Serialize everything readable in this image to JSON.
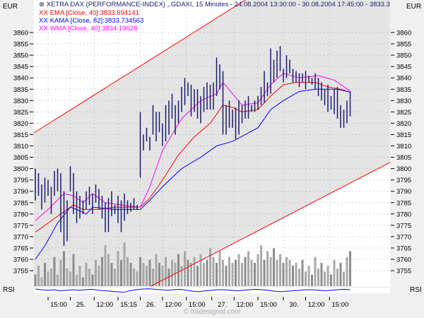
{
  "chart_data": {
    "type": "ohlc",
    "title": "XETRA DAX (PERFORMANCE-INDEX) ,.GDAXI, 15 Minutes - 24.08.2004 13:30:00 - 30.08.2004 17:45:00 - 3833.3",
    "ylabel_left": "EUR",
    "ylabel_right": "EUR",
    "rsi_label": "RSI",
    "ylim": [
      3750,
      3865
    ],
    "yticks": [
      3860,
      3855,
      3850,
      3845,
      3840,
      3835,
      3830,
      3825,
      3820,
      3815,
      3810,
      3805,
      3800,
      3795,
      3790,
      3785,
      3780,
      3775,
      3770,
      3765,
      3760,
      3755
    ],
    "xticks": [
      {
        "bar": 4,
        "label": "15:00"
      },
      {
        "bar": 11,
        "label": "25."
      },
      {
        "bar": 18.5,
        "label": "12:00"
      },
      {
        "bar": 26,
        "label": "15:15"
      },
      {
        "bar": 33,
        "label": "26."
      },
      {
        "bar": 40,
        "label": "12:00"
      },
      {
        "bar": 47.5,
        "label": "15:00"
      },
      {
        "bar": 55.5,
        "label": "27."
      },
      {
        "bar": 62.5,
        "label": "12:00"
      },
      {
        "bar": 70,
        "label": "15:00"
      },
      {
        "bar": 78,
        "label": "30."
      },
      {
        "bar": 85,
        "label": "12:00"
      },
      {
        "bar": 92.5,
        "label": "15:00"
      }
    ],
    "grid": true,
    "bars_high_low": [
      [
        3800,
        3786
      ],
      [
        3798,
        3788
      ],
      [
        3793,
        3782
      ],
      [
        3796,
        3785
      ],
      [
        3795,
        3788
      ],
      [
        3792,
        3780
      ],
      [
        3799,
        3788
      ],
      [
        3800,
        3790
      ],
      [
        3798,
        3772
      ],
      [
        3790,
        3766
      ],
      [
        3786,
        3768
      ],
      [
        3801,
        3790
      ],
      [
        3798,
        3780
      ],
      [
        3790,
        3776
      ],
      [
        3788,
        3778
      ],
      [
        3786,
        3780
      ],
      [
        3790,
        3782
      ],
      [
        3792,
        3784
      ],
      [
        3789,
        3780
      ],
      [
        3793,
        3785
      ],
      [
        3791,
        3782
      ],
      [
        3788,
        3778
      ],
      [
        3785,
        3772
      ],
      [
        3787,
        3772
      ],
      [
        3790,
        3779
      ],
      [
        3784,
        3780
      ],
      [
        3788,
        3776
      ],
      [
        3786,
        3772
      ],
      [
        3789,
        3777
      ],
      [
        3786,
        3780
      ],
      [
        3785,
        3781
      ],
      [
        3787,
        3782
      ],
      [
        3784,
        3782
      ],
      [
        3825,
        3796
      ],
      [
        3815,
        3808
      ],
      [
        3818,
        3812
      ],
      [
        3814,
        3808
      ],
      [
        3828,
        3815
      ],
      [
        3825,
        3812
      ],
      [
        3825,
        3816
      ],
      [
        3820,
        3810
      ],
      [
        3828,
        3812
      ],
      [
        3830,
        3815
      ],
      [
        3833,
        3822
      ],
      [
        3828,
        3815
      ],
      [
        3830,
        3820
      ],
      [
        3836,
        3825
      ],
      [
        3840,
        3828
      ],
      [
        3838,
        3832
      ],
      [
        3837,
        3823
      ],
      [
        3835,
        3825
      ],
      [
        3835,
        3822
      ],
      [
        3832,
        3820
      ],
      [
        3836,
        3825
      ],
      [
        3838,
        3826
      ],
      [
        3837,
        3826
      ],
      [
        3838,
        3826
      ],
      [
        3849,
        3832
      ],
      [
        3846,
        3835
      ],
      [
        3843,
        3815
      ],
      [
        3828,
        3815
      ],
      [
        3830,
        3818
      ],
      [
        3826,
        3818
      ],
      [
        3827,
        3813
      ],
      [
        3830,
        3815
      ],
      [
        3828,
        3820
      ],
      [
        3830,
        3822
      ],
      [
        3832,
        3822
      ],
      [
        3828,
        3825
      ],
      [
        3830,
        3825
      ],
      [
        3832,
        3826
      ],
      [
        3836,
        3828
      ],
      [
        3843,
        3829
      ],
      [
        3838,
        3832
      ],
      [
        3853,
        3833
      ],
      [
        3848,
        3838
      ],
      [
        3852,
        3840
      ],
      [
        3854,
        3843
      ],
      [
        3844,
        3838
      ],
      [
        3850,
        3840
      ],
      [
        3848,
        3842
      ],
      [
        3844,
        3838
      ],
      [
        3843,
        3838
      ],
      [
        3842,
        3836
      ],
      [
        3842,
        3838
      ],
      [
        3843,
        3835
      ],
      [
        3841,
        3838
      ],
      [
        3840,
        3837
      ],
      [
        3842,
        3835
      ],
      [
        3840,
        3832
      ],
      [
        3838,
        3830
      ],
      [
        3835,
        3828
      ],
      [
        3837,
        3825
      ],
      [
        3832,
        3826
      ],
      [
        3835,
        3824
      ],
      [
        3836,
        3822
      ],
      [
        3828,
        3818
      ],
      [
        3826,
        3818
      ],
      [
        3830,
        3820
      ],
      [
        3834,
        3823
      ]
    ],
    "volume": [
      20,
      35,
      15,
      40,
      25,
      30,
      50,
      20,
      45,
      60,
      30,
      25,
      55,
      20,
      35,
      15,
      40,
      30,
      20,
      45,
      35,
      50,
      70,
      55,
      40,
      30,
      60,
      45,
      75,
      50,
      40,
      30,
      25,
      50,
      40,
      35,
      45,
      30,
      55,
      40,
      35,
      50,
      30,
      45,
      40,
      55,
      35,
      60,
      45,
      40,
      50,
      35,
      55,
      40,
      45,
      65,
      50,
      40,
      60,
      45,
      35,
      50,
      40,
      45,
      55,
      40,
      50,
      60,
      45,
      40,
      55,
      70,
      45,
      60,
      50,
      65,
      45,
      55,
      40,
      50,
      45,
      35,
      40,
      30,
      45,
      25,
      35,
      20,
      50,
      30,
      40,
      25,
      35,
      20,
      45,
      30,
      40,
      25,
      50,
      60
    ],
    "rsi": [
      55,
      52,
      50,
      52,
      48,
      50,
      52,
      50,
      52,
      54,
      50,
      48,
      46,
      44,
      42,
      48,
      52,
      55,
      56,
      54,
      52,
      50,
      52,
      54,
      50,
      46,
      44,
      48,
      50,
      52,
      52,
      50,
      48,
      50,
      52,
      54,
      52,
      50,
      46,
      44,
      46,
      48,
      50,
      52,
      52,
      50,
      48,
      50,
      52,
      54,
      52
    ],
    "channel": {
      "color": "#ff0000",
      "upper": [
        [
          -0.4,
          3815.8
        ],
        [
          66,
          3874.3
        ]
      ],
      "lower": [
        [
          36.4,
          3748.2
        ],
        [
          111.5,
          3802.7
        ]
      ]
    },
    "series": [
      {
        "name": "EMA [Close, 40]:3833.694141",
        "color": "#ff0000",
        "points": [
          [
            0,
            3772
          ],
          [
            4,
            3776
          ],
          [
            9,
            3781
          ],
          [
            12,
            3784
          ],
          [
            15,
            3782
          ],
          [
            20,
            3782
          ],
          [
            25,
            3783
          ],
          [
            33,
            3783
          ],
          [
            36,
            3787
          ],
          [
            40,
            3795
          ],
          [
            45,
            3806
          ],
          [
            50,
            3814
          ],
          [
            55,
            3820
          ],
          [
            59,
            3828
          ],
          [
            62,
            3827
          ],
          [
            65,
            3825
          ],
          [
            70,
            3826
          ],
          [
            74,
            3832
          ],
          [
            78,
            3837
          ],
          [
            82,
            3838
          ],
          [
            88,
            3838
          ],
          [
            92,
            3836
          ],
          [
            96,
            3835
          ],
          [
            99,
            3833.7
          ]
        ]
      },
      {
        "name": "KAMA [Close, 82]:3833.734563",
        "color": "#0000ff",
        "points": [
          [
            0,
            3760
          ],
          [
            3,
            3766
          ],
          [
            7,
            3776
          ],
          [
            11,
            3783
          ],
          [
            13,
            3782
          ],
          [
            16,
            3780
          ],
          [
            18,
            3783
          ],
          [
            25,
            3782
          ],
          [
            33,
            3782
          ],
          [
            36,
            3786
          ],
          [
            40,
            3792
          ],
          [
            46,
            3800
          ],
          [
            52,
            3805
          ],
          [
            57,
            3810
          ],
          [
            62,
            3812
          ],
          [
            66,
            3815
          ],
          [
            70,
            3818
          ],
          [
            74,
            3826
          ],
          [
            78,
            3830
          ],
          [
            83,
            3834
          ],
          [
            88,
            3835
          ],
          [
            95,
            3835
          ],
          [
            99,
            3833.7
          ]
        ]
      },
      {
        "name": "WMA [Close, 40]:3834.19628",
        "color": "#ff00ff",
        "points": [
          [
            0,
            3777
          ],
          [
            4,
            3782
          ],
          [
            9,
            3789
          ],
          [
            12,
            3788
          ],
          [
            15,
            3785
          ],
          [
            18,
            3789
          ],
          [
            22,
            3785
          ],
          [
            27,
            3784
          ],
          [
            33,
            3783
          ],
          [
            36,
            3792
          ],
          [
            40,
            3808
          ],
          [
            46,
            3822
          ],
          [
            52,
            3830
          ],
          [
            57,
            3833
          ],
          [
            59,
            3838
          ],
          [
            62,
            3833
          ],
          [
            65,
            3828
          ],
          [
            70,
            3829
          ],
          [
            74,
            3837
          ],
          [
            78,
            3842
          ],
          [
            83,
            3840
          ],
          [
            89,
            3841
          ],
          [
            94,
            3839
          ],
          [
            99,
            3834.2
          ]
        ]
      }
    ],
    "watermark": "© tradesignal.com"
  },
  "colors": {
    "bars": "#1a1a6e",
    "volume": "#909090",
    "rsi": "#0000ff",
    "channel_fill": "#e4e4e4",
    "title": "#1a1a6e"
  }
}
